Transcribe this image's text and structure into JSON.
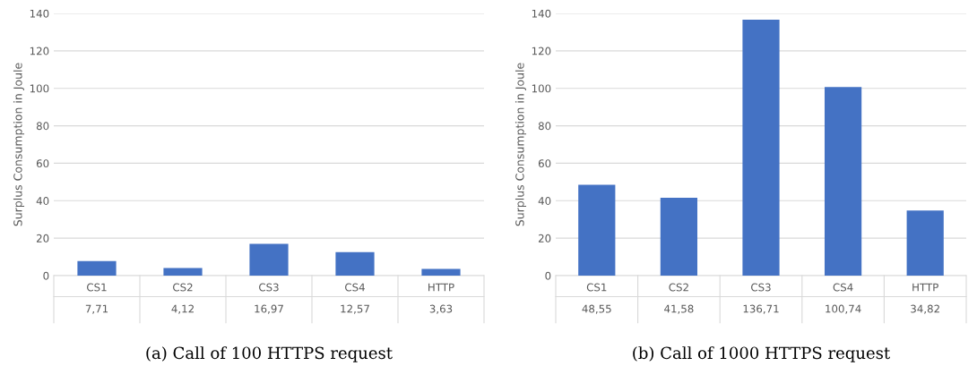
{
  "chart_data": [
    {
      "type": "bar",
      "title": "(a) Call of 100 HTTPS request",
      "ylabel": "Surplus Consumption in Joule",
      "categories": [
        "CS1",
        "CS2",
        "CS3",
        "CS4",
        "HTTP"
      ],
      "values": [
        7.71,
        4.12,
        16.97,
        12.57,
        3.63
      ],
      "value_labels": [
        "7,71",
        "4,12",
        "16,97",
        "12,57",
        "3,63"
      ],
      "color": "#4472c4",
      "ylim": [
        0,
        140
      ],
      "yticks": [
        0,
        20,
        40,
        60,
        80,
        100,
        120,
        140
      ],
      "grid": "y"
    },
    {
      "type": "bar",
      "title": "(b) Call of 1000 HTTPS request",
      "ylabel": "Surplus Consumption in Joule",
      "categories": [
        "CS1",
        "CS2",
        "CS3",
        "CS4",
        "HTTP"
      ],
      "values": [
        48.55,
        41.58,
        136.71,
        100.74,
        34.82
      ],
      "value_labels": [
        "48,55",
        "41,58",
        "136,71",
        "100,74",
        "34,82"
      ],
      "color": "#4472c4",
      "ylim": [
        0,
        140
      ],
      "yticks": [
        0,
        20,
        40,
        60,
        80,
        100,
        120,
        140
      ],
      "grid": "y"
    }
  ]
}
